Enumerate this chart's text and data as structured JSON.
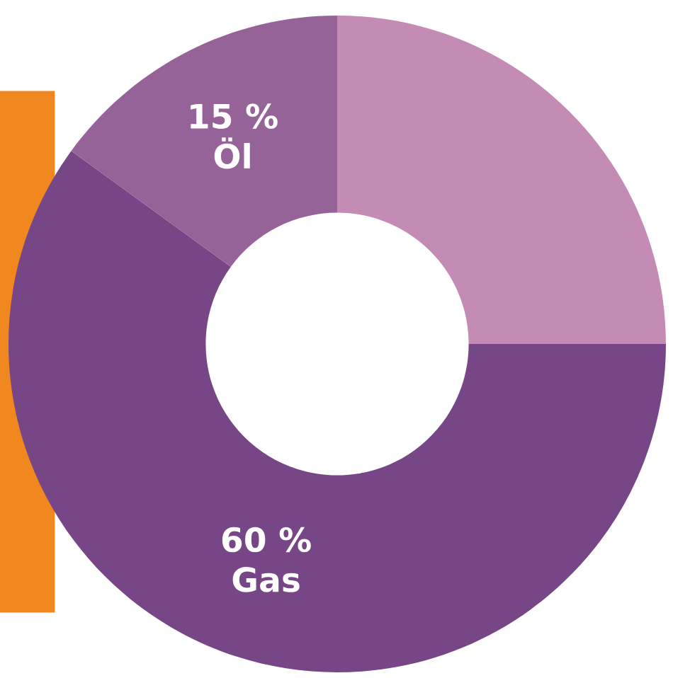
{
  "chart_data": {
    "type": "donut",
    "categories": [
      null,
      "Gas",
      "Öl"
    ],
    "values": [
      25,
      60,
      15
    ],
    "value_labels": [
      null,
      "60 %",
      "15 %"
    ],
    "colors": [
      "#c48bb5",
      "#774687",
      "#966399"
    ],
    "legend": false
  }
}
